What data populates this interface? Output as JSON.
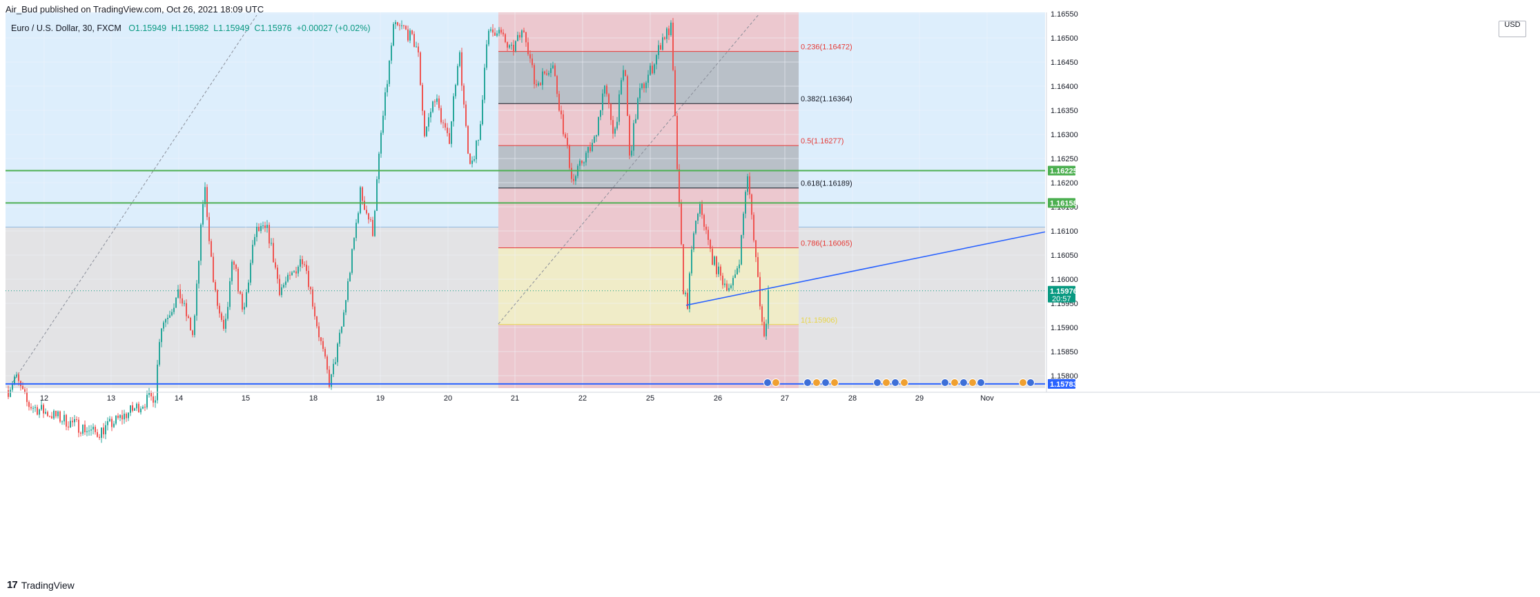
{
  "header": {
    "published_by": "Air_Bud published on TradingView.com, Oct 26, 2021 18:09 UTC"
  },
  "symbol": {
    "name": "Euro / U.S. Dollar, 30, FXCM",
    "open": "O1.15949",
    "high": "H1.15982",
    "low": "L1.15949",
    "close": "C1.15976",
    "change": "+0.00027 (+0.02%)"
  },
  "currency": "USD",
  "footer": {
    "logo": "17",
    "brand": "TradingView"
  },
  "colors": {
    "up": "#26a69a",
    "down": "#ef5350",
    "blue_zone": "#ddeefc",
    "gray_zone": "#e3e3e5",
    "red_zone": "#ecc8cf",
    "dark_zone": "#b9c0c8",
    "yellow_zone": "#f0ecc8",
    "green_line": "#4caf50",
    "blue_line": "#2962ff",
    "fib_red": "#e53935"
  },
  "chart_data": {
    "type": "candlestick",
    "interval": "30",
    "ylim": [
      1.1576,
      1.1656
    ],
    "x_ticks": [
      "12",
      "13",
      "14",
      "15",
      "18",
      "19",
      "20",
      "21",
      "22",
      "25",
      "26",
      "27",
      "28",
      "29",
      "Nov"
    ],
    "y_ticks": [
      "1.16550",
      "1.16500",
      "1.16450",
      "1.16400",
      "1.16350",
      "1.16300",
      "1.16250",
      "1.16200",
      "1.16150",
      "1.16100",
      "1.16050",
      "1.16000",
      "1.15950",
      "1.15900",
      "1.15850",
      "1.15800"
    ],
    "price_labels": [
      {
        "value": 1.16225,
        "text": "1.16225",
        "color": "#4caf50"
      },
      {
        "value": 1.16158,
        "text": "1.16158",
        "color": "#4caf50"
      },
      {
        "value": 1.15976,
        "text": "1.15976",
        "sub": "20:57",
        "color": "#089981"
      },
      {
        "value": 1.15783,
        "text": "1.15783",
        "color": "#2962ff"
      }
    ],
    "fib_levels": [
      {
        "ratio": "0.236",
        "value": 1.16472,
        "label": "0.236(1.16472)",
        "color": "#e53935"
      },
      {
        "ratio": "0.382",
        "value": 1.16364,
        "label": "0.382(1.16364)",
        "color": "#131722"
      },
      {
        "ratio": "0.5",
        "value": 1.16277,
        "label": "0.5(1.16277)",
        "color": "#e53935"
      },
      {
        "ratio": "0.618",
        "value": 1.16189,
        "label": "0.618(1.16189)",
        "color": "#131722"
      },
      {
        "ratio": "0.786",
        "value": 1.16065,
        "label": "0.786(1.16065)",
        "color": "#e53935"
      },
      {
        "ratio": "1",
        "value": 1.15906,
        "label": "1(1.15906)",
        "color": "#e8d54a"
      }
    ],
    "horizontal_lines": [
      {
        "name": "resistance-1",
        "value": 1.16225,
        "color": "#4caf50"
      },
      {
        "name": "resistance-2",
        "value": 1.16158,
        "color": "#4caf50"
      },
      {
        "name": "support",
        "value": 1.15783,
        "color": "#2962ff"
      }
    ],
    "trendline": {
      "from_price": 1.15946,
      "to_price": 1.16098,
      "color": "#2962ff"
    },
    "series": [
      {
        "name": "EUR/USD 30m",
        "ohlc_samples": "approximate candle path from Oct 11 to Oct 26"
      }
    ]
  }
}
